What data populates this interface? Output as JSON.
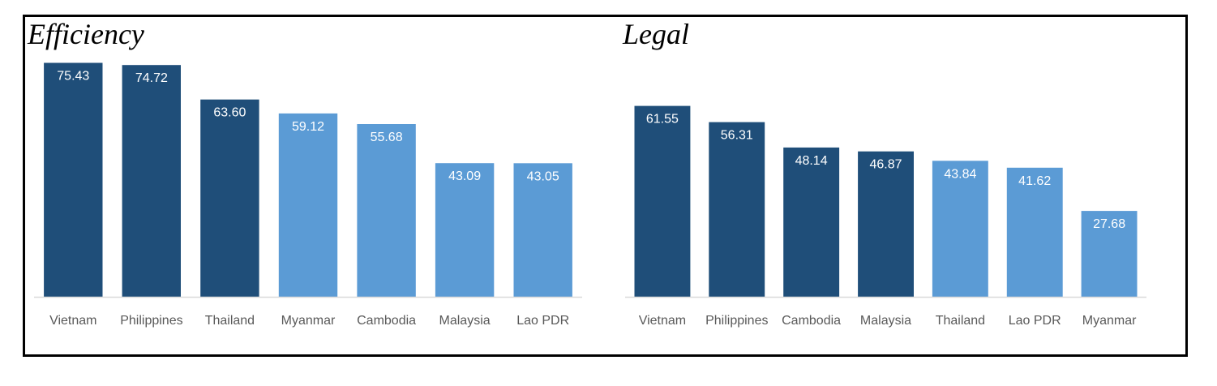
{
  "colors": {
    "dark": "#1f4e79",
    "light": "#5b9bd5",
    "axis": "#d9d9d9",
    "label": "#ffffff",
    "tick": "#595959"
  },
  "chart_data": [
    {
      "type": "bar",
      "title": "Efficiency",
      "categories": [
        "Vietnam",
        "Philippines",
        "Thailand",
        "Myanmar",
        "Cambodia",
        "Malaysia",
        "Lao PDR"
      ],
      "values": [
        75.43,
        74.72,
        63.6,
        59.12,
        55.68,
        43.09,
        43.05
      ],
      "value_labels": [
        "75.43",
        "74.72",
        "63.60",
        "59.12",
        "55.68",
        "43.09",
        "43.05"
      ],
      "bar_colors": [
        "dark",
        "dark",
        "dark",
        "light",
        "light",
        "light",
        "light"
      ],
      "ylim": [
        0,
        80
      ],
      "grid": false
    },
    {
      "type": "bar",
      "title": "Legal",
      "categories": [
        "Vietnam",
        "Philippines",
        "Cambodia",
        "Malaysia",
        "Thailand",
        "Lao PDR",
        "Myanmar"
      ],
      "values": [
        61.55,
        56.31,
        48.14,
        46.87,
        43.84,
        41.62,
        27.68
      ],
      "value_labels": [
        "61.55",
        "56.31",
        "48.14",
        "46.87",
        "43.84",
        "41.62",
        "27.68"
      ],
      "bar_colors": [
        "dark",
        "dark",
        "dark",
        "dark",
        "light",
        "light",
        "light"
      ],
      "ylim": [
        0,
        80
      ],
      "grid": false
    }
  ]
}
